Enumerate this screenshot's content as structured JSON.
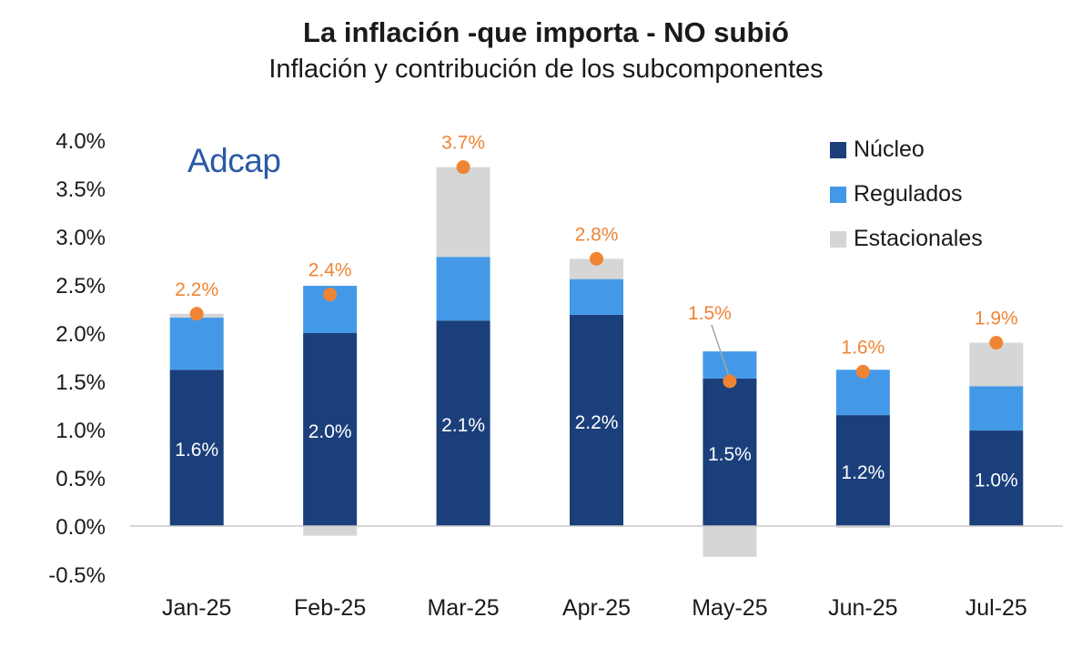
{
  "title": "La inflación -que importa - NO subió",
  "subtitle": "Inflación y contribución de los subcomponentes",
  "logo_text": "Adcap",
  "colors": {
    "nucleo": "#1b3f7b",
    "regulados": "#4399e8",
    "estacionales": "#d6d6d6",
    "total_marker": "#ef8433",
    "total_label": "#ef8433",
    "axis_text": "#1a1a1a"
  },
  "chart_data": {
    "type": "bar",
    "stacked": true,
    "categories": [
      "Jan-25",
      "Feb-25",
      "Mar-25",
      "Apr-25",
      "May-25",
      "Jun-25",
      "Jul-25"
    ],
    "series": [
      {
        "name": "Núcleo",
        "values": [
          1.62,
          2.0,
          2.13,
          2.19,
          1.53,
          1.15,
          0.99
        ]
      },
      {
        "name": "Regulados",
        "values": [
          0.54,
          0.49,
          0.66,
          0.37,
          0.28,
          0.47,
          0.46
        ]
      },
      {
        "name": "Estacionales",
        "values": [
          0.04,
          -0.1,
          0.93,
          0.21,
          -0.32,
          -0.02,
          0.45
        ]
      }
    ],
    "nucleo_labels": [
      "1.6%",
      "2.0%",
      "2.1%",
      "2.2%",
      "1.5%",
      "1.2%",
      "1.0%"
    ],
    "totals": [
      2.2,
      2.4,
      3.72,
      2.77,
      1.5,
      1.6,
      1.9
    ],
    "total_labels": [
      "2.2%",
      "2.4%",
      "3.7%",
      "2.8%",
      "1.5%",
      "1.6%",
      "1.9%"
    ],
    "ylim": [
      -0.5,
      4.0
    ],
    "y_ticks": [
      "-0.5%",
      "0.0%",
      "0.5%",
      "1.0%",
      "1.5%",
      "2.0%",
      "2.5%",
      "3.0%",
      "3.5%",
      "4.0%"
    ],
    "legend": [
      "Núcleo",
      "Regulados",
      "Estacionales"
    ],
    "legend_position": "top-right",
    "grid": false
  }
}
